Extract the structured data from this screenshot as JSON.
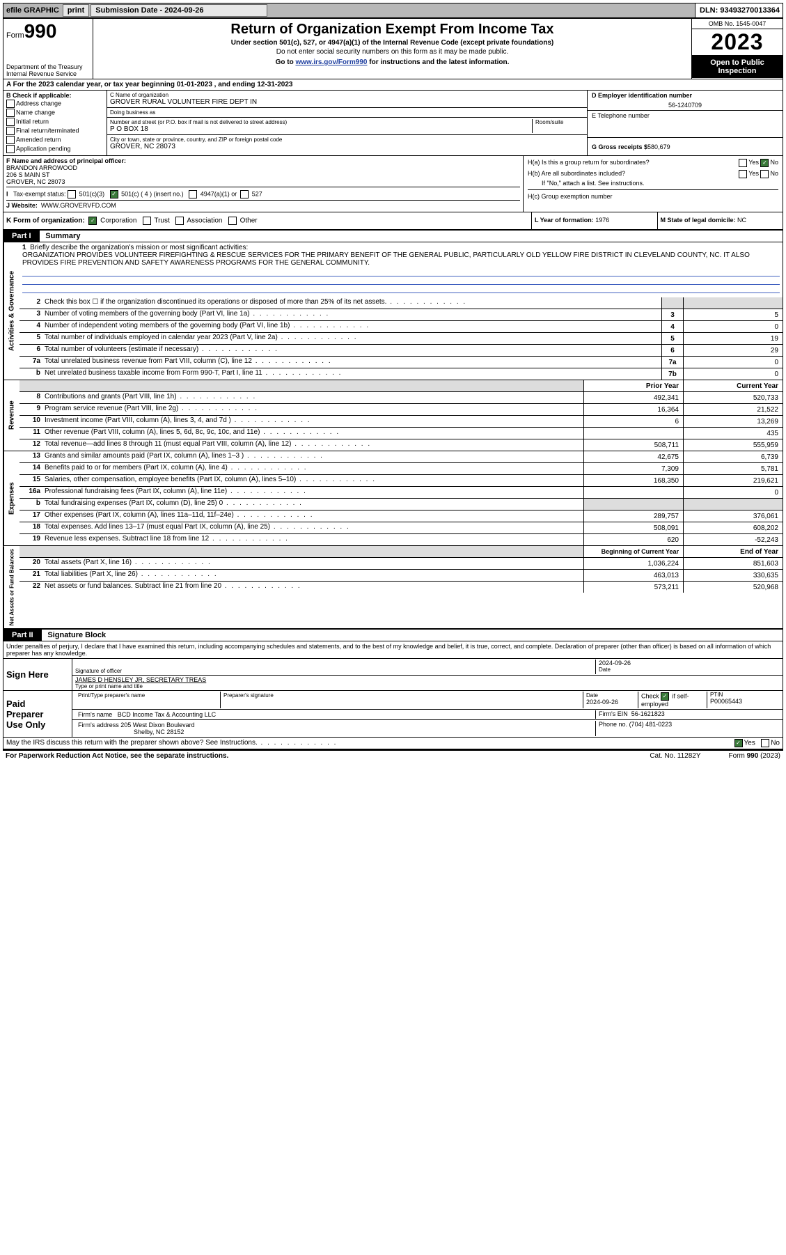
{
  "topbar": {
    "efile_label": "efile GRAPHIC",
    "print_label": "print",
    "sub_date_label": "Submission Date - 2024-09-26",
    "dln": "DLN: 93493270013364"
  },
  "header": {
    "form_prefix": "Form",
    "form_num": "990",
    "dept": "Department of the Treasury",
    "irs": "Internal Revenue Service",
    "title": "Return of Organization Exempt From Income Tax",
    "sub1": "Under section 501(c), 527, or 4947(a)(1) of the Internal Revenue Code (except private foundations)",
    "sub2": "Do not enter social security numbers on this form as it may be made public.",
    "sub3_pre": "Go to ",
    "sub3_link": "www.irs.gov/Form990",
    "sub3_post": " for instructions and the latest information.",
    "omb": "OMB No. 1545-0047",
    "year": "2023",
    "open": "Open to Public Inspection"
  },
  "rowA": "A For the 2023 calendar year, or tax year beginning 01-01-2023    , and ending 12-31-2023",
  "colB": {
    "hdr": "B Check if applicable:",
    "addr": "Address change",
    "name": "Name change",
    "init": "Initial return",
    "final": "Final return/terminated",
    "amend": "Amended return",
    "app": "Application pending"
  },
  "colC": {
    "name_lbl": "C Name of organization",
    "name": "GROVER RURAL VOLUNTEER FIRE DEPT IN",
    "dba_lbl": "Doing business as",
    "dba": "",
    "street_lbl": "Number and street (or P.O. box if mail is not delivered to street address)",
    "room_lbl": "Room/suite",
    "street": "P O BOX 18",
    "city_lbl": "City or town, state or province, country, and ZIP or foreign postal code",
    "city": "GROVER, NC  28073"
  },
  "colDE": {
    "d_lbl": "D Employer identification number",
    "d_val": "56-1240709",
    "e_lbl": "E Telephone number",
    "e_val": "",
    "g_lbl": "G Gross receipts $",
    "g_val": "580,679"
  },
  "rowF": {
    "f_lbl": "F Name and address of principal officer:",
    "name": "BRANDON ARROWOOD",
    "street": "206 S MAIN ST",
    "city": "GROVER, NC  28073"
  },
  "rowH": {
    "ha": "H(a)  Is this a group return for subordinates?",
    "ha_yes": "Yes",
    "ha_no": "No",
    "hb": "H(b)  Are all subordinates included?",
    "hb_yes": "Yes",
    "hb_no": "No",
    "hb_note": "If \"No,\" attach a list. See instructions.",
    "hc": "H(c)  Group exemption number"
  },
  "rowI": {
    "label": "Tax-exempt status:",
    "o1": "501(c)(3)",
    "o2": "501(c) ( 4 ) (insert no.)",
    "o3": "4947(a)(1) or",
    "o4": "527"
  },
  "rowJ": {
    "label": "J   Website:",
    "val": "WWW.GROVERVFD.COM"
  },
  "rowK": {
    "label": "K Form of organization:",
    "corp": "Corporation",
    "trust": "Trust",
    "assoc": "Association",
    "other": "Other"
  },
  "rowL": {
    "label": "L Year of formation:",
    "val": "1976"
  },
  "rowM": {
    "label": "M State of legal domicile:",
    "val": "NC"
  },
  "part1": {
    "hdr": "Part I",
    "title": "Summary"
  },
  "side1": "Activities & Governance",
  "side2": "Revenue",
  "side3": "Expenses",
  "side4": "Net Assets or Fund Balances",
  "mission": {
    "num": "1",
    "lbl": "Briefly describe the organization's mission or most significant activities:",
    "text": "ORGANIZATION PROVIDES VOLUNTEER FIREFIGHTING & RESCUE SERVICES FOR THE PRIMARY BENEFIT OF THE GENERAL PUBLIC, PARTICULARLY OLD YELLOW FIRE DISTRICT IN CLEVELAND COUNTY, NC. IT ALSO PROVIDES FIRE PREVENTION AND SAFETY AWARENESS PROGRAMS FOR THE GENERAL COMMUNITY."
  },
  "gov_lines": [
    {
      "n": "2",
      "t": "Check this box  ☐  if the organization discontinued its operations or disposed of more than 25% of its net assets.",
      "box": "",
      "v": ""
    },
    {
      "n": "3",
      "t": "Number of voting members of the governing body (Part VI, line 1a)",
      "box": "3",
      "v": "5"
    },
    {
      "n": "4",
      "t": "Number of independent voting members of the governing body (Part VI, line 1b)",
      "box": "4",
      "v": "0"
    },
    {
      "n": "5",
      "t": "Total number of individuals employed in calendar year 2023 (Part V, line 2a)",
      "box": "5",
      "v": "19"
    },
    {
      "n": "6",
      "t": "Total number of volunteers (estimate if necessary)",
      "box": "6",
      "v": "29"
    },
    {
      "n": "7a",
      "t": "Total unrelated business revenue from Part VIII, column (C), line 12",
      "box": "7a",
      "v": "0"
    },
    {
      "n": "b",
      "t": "Net unrelated business taxable income from Form 990-T, Part I, line 11",
      "box": "7b",
      "v": "0"
    }
  ],
  "rev_hdr": {
    "prior": "Prior Year",
    "curr": "Current Year"
  },
  "rev_lines": [
    {
      "n": "8",
      "t": "Contributions and grants (Part VIII, line 1h)",
      "p": "492,341",
      "c": "520,733"
    },
    {
      "n": "9",
      "t": "Program service revenue (Part VIII, line 2g)",
      "p": "16,364",
      "c": "21,522"
    },
    {
      "n": "10",
      "t": "Investment income (Part VIII, column (A), lines 3, 4, and 7d )",
      "p": "6",
      "c": "13,269"
    },
    {
      "n": "11",
      "t": "Other revenue (Part VIII, column (A), lines 5, 6d, 8c, 9c, 10c, and 11e)",
      "p": "",
      "c": "435"
    },
    {
      "n": "12",
      "t": "Total revenue—add lines 8 through 11 (must equal Part VIII, column (A), line 12)",
      "p": "508,711",
      "c": "555,959"
    }
  ],
  "exp_lines": [
    {
      "n": "13",
      "t": "Grants and similar amounts paid (Part IX, column (A), lines 1–3 )",
      "p": "42,675",
      "c": "6,739"
    },
    {
      "n": "14",
      "t": "Benefits paid to or for members (Part IX, column (A), line 4)",
      "p": "7,309",
      "c": "5,781"
    },
    {
      "n": "15",
      "t": "Salaries, other compensation, employee benefits (Part IX, column (A), lines 5–10)",
      "p": "168,350",
      "c": "219,621"
    },
    {
      "n": "16a",
      "t": "Professional fundraising fees (Part IX, column (A), line 11e)",
      "p": "",
      "c": "0"
    },
    {
      "n": "b",
      "t": "Total fundraising expenses (Part IX, column (D), line 25) 0",
      "p": "gray",
      "c": "gray"
    },
    {
      "n": "17",
      "t": "Other expenses (Part IX, column (A), lines 11a–11d, 11f–24e)",
      "p": "289,757",
      "c": "376,061"
    },
    {
      "n": "18",
      "t": "Total expenses. Add lines 13–17 (must equal Part IX, column (A), line 25)",
      "p": "508,091",
      "c": "608,202"
    },
    {
      "n": "19",
      "t": "Revenue less expenses. Subtract line 18 from line 12",
      "p": "620",
      "c": "-52,243"
    }
  ],
  "net_hdr": {
    "beg": "Beginning of Current Year",
    "end": "End of Year"
  },
  "net_lines": [
    {
      "n": "20",
      "t": "Total assets (Part X, line 16)",
      "p": "1,036,224",
      "c": "851,603"
    },
    {
      "n": "21",
      "t": "Total liabilities (Part X, line 26)",
      "p": "463,013",
      "c": "330,635"
    },
    {
      "n": "22",
      "t": "Net assets or fund balances. Subtract line 21 from line 20",
      "p": "573,211",
      "c": "520,968"
    }
  ],
  "part2": {
    "hdr": "Part II",
    "title": "Signature Block"
  },
  "perjury": "Under penalties of perjury, I declare that I have examined this return, including accompanying schedules and statements, and to the best of my knowledge and belief, it is true, correct, and complete. Declaration of preparer (other than officer) is based on all information of which preparer has any knowledge.",
  "sign": {
    "here": "Sign Here",
    "sig_lbl": "Signature of officer",
    "date_lbl": "Date",
    "date_val": "2024-09-26",
    "name": "JAMES D HENSLEY JR, SECRETARY TREAS",
    "type_lbl": "Type or print name and title"
  },
  "paid": {
    "hdr1": "Paid",
    "hdr2": "Preparer",
    "hdr3": "Use Only",
    "c1": "Print/Type preparer's name",
    "c2": "Preparer's signature",
    "c3_lbl": "Date",
    "c3": "2024-09-26",
    "c4_lbl": "Check",
    "c4_txt": "if self-employed",
    "c5_lbl": "PTIN",
    "c5": "P00065443",
    "firm_lbl": "Firm's name",
    "firm": "BCD Income Tax & Accounting LLC",
    "ein_lbl": "Firm's EIN",
    "ein": "56-1621823",
    "addr_lbl": "Firm's address",
    "addr1": "205 West Dixon Boulevard",
    "addr2": "Shelby, NC  28152",
    "phone_lbl": "Phone no.",
    "phone": "(704) 481-0223"
  },
  "discuss": {
    "text": "May the IRS discuss this return with the preparer shown above? See Instructions.",
    "yes": "Yes",
    "no": "No"
  },
  "footer": {
    "left": "For Paperwork Reduction Act Notice, see the separate instructions.",
    "mid": "Cat. No. 11282Y",
    "right_pre": "Form ",
    "right_b": "990",
    "right_post": " (2023)"
  }
}
